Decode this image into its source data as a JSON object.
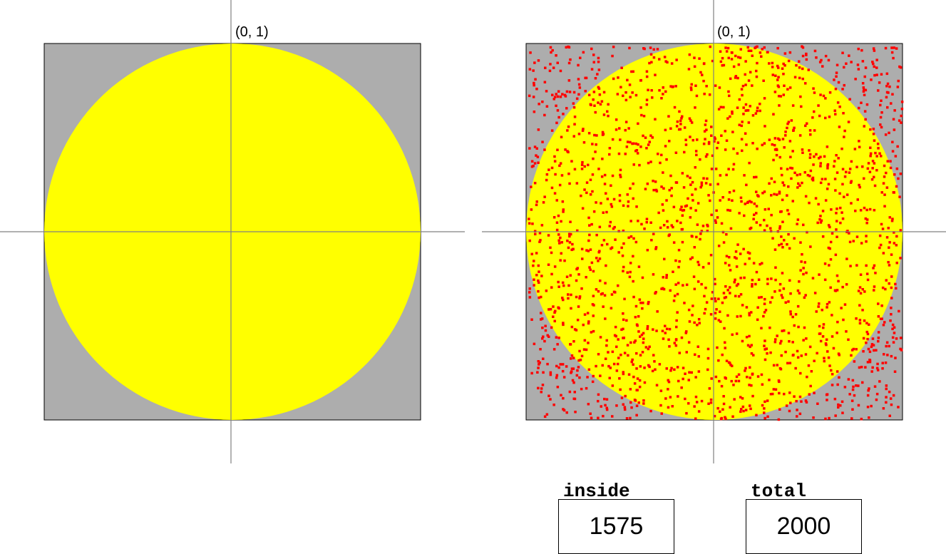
{
  "left_panel": {
    "label": "(0, 1)"
  },
  "right_panel": {
    "label": "(0, 1)"
  },
  "counters": {
    "inside_label": "inside",
    "inside_value": "1575",
    "total_label": "total",
    "total_value": "2000"
  },
  "colors": {
    "square": "#adadad",
    "circle": "#ffff00",
    "points": "#ff0000",
    "axes": "#808080"
  }
}
